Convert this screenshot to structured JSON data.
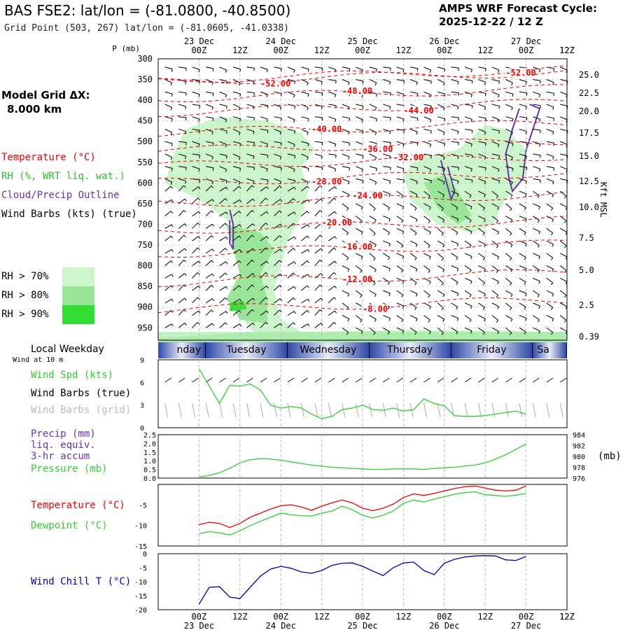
{
  "header": {
    "title": "BAS FSE2:  lat/lon = (-81.0800, -40.8500)",
    "grid_point": "Grid Point (503, 267) lat/lon = (-81.0605, -41.0338)",
    "forecast_title": "AMPS WRF Forecast Cycle:",
    "forecast_cycle": "2025-12-22 / 12  Z"
  },
  "model_grid": {
    "line1": "Model Grid ΔX:",
    "line2": "8.000 km"
  },
  "upper_legend": {
    "temperature": "Temperature (°C)",
    "rh": "RH (%, WRT liq. wat.)",
    "cloud": "Cloud/Precip Outline",
    "wind": "Wind Barbs (kts) (true)",
    "rh70": "RH > 70%",
    "rh80": "RH > 80%",
    "rh90": "RH > 90%"
  },
  "colors": {
    "temperature": "#ee0000",
    "rh70": "#ccf5cc",
    "rh80": "#99e699",
    "rh90": "#33dd33",
    "cloud": "#6633aa",
    "wind_speed": "#33cc33",
    "wind_grid": "#aaaaaa",
    "precip": "#6633aa",
    "pressure": "#33cc33",
    "dewpoint": "#33cc33",
    "wind_chill": "#0000aa",
    "weekday_band": "#6070b8"
  },
  "time_axis": {
    "top_dates": [
      "23 Dec",
      "24 Dec",
      "25 Dec",
      "26 Dec",
      "27 Dec"
    ],
    "bottom_dates": [
      "23 Dec",
      "24 Dec",
      "25 Dec",
      "26 Dec",
      "27 Dec"
    ],
    "hours": [
      "00Z",
      "12Z",
      "00Z",
      "12Z",
      "00Z",
      "12Z",
      "00Z",
      "12Z",
      "00Z",
      "12Z"
    ],
    "p_label": "P (mb)",
    "right_label": "Kft MSL"
  },
  "weekday": {
    "label": "Local Weekday",
    "days": [
      "nday",
      "Tuesday",
      "Wednesday",
      "Thursday",
      "Friday",
      "Sa"
    ]
  },
  "wind10": {
    "subtitle": "Wind at 10 m",
    "speed_label": "Wind Spd (kts)",
    "barbs_label": "Wind Barbs (true)",
    "grid_label": "Wind Barbs (grid)"
  },
  "precip_panel": {
    "precip_label": "Precip (mm)",
    "liq": "liq. equiv.",
    "accum": "3-hr accum",
    "pressure_label": "Pressure (mb)",
    "pressure_unit": "(mb)"
  },
  "temp_panel": {
    "temp_label": "Temperature (°C)",
    "dew_label": "Dewpoint (°C)"
  },
  "chill_panel": {
    "label": "Wind Chill T (°C)"
  },
  "chart_data": [
    {
      "type": "line",
      "name": "upper-air time-height",
      "y_axis": "pressure (mb)",
      "pressure_ticks": [
        300,
        350,
        400,
        450,
        500,
        550,
        600,
        650,
        700,
        750,
        800,
        850,
        900,
        950
      ],
      "height_ticks": [
        "25.0",
        "22.5",
        "20.0",
        "17.5",
        "15.0",
        "12.5",
        "10.0",
        "7.5",
        "5.0",
        "2.5",
        "0.39"
      ],
      "isotherms": [
        {
          "label": "-52.00",
          "p": 350,
          "t": 18
        },
        {
          "label": "-52.00",
          "p": 330,
          "t": 90
        },
        {
          "label": "-48.00",
          "p": 385,
          "t": 42
        },
        {
          "label": "-44.00",
          "p": 415,
          "t": 60
        },
        {
          "label": "-40.00",
          "p": 470,
          "t": 33
        },
        {
          "label": "-36.00",
          "p": 510,
          "t": 48
        },
        {
          "label": "-32.00",
          "p": 545,
          "t": 57
        },
        {
          "label": "-28.00",
          "p": 590,
          "t": 33
        },
        {
          "label": "-24.00",
          "p": 640,
          "t": 45
        },
        {
          "label": "-20.00",
          "p": 705,
          "t": 36
        },
        {
          "label": "-16.00",
          "p": 760,
          "t": 42
        },
        {
          "label": "-12.00",
          "p": 830,
          "t": 42
        },
        {
          "label": "-8.00",
          "p": 895,
          "t": 48
        }
      ]
    },
    {
      "type": "line",
      "name": "10 m wind speed",
      "ylim": [
        0,
        9
      ],
      "yticks": [
        "0",
        "3",
        "6",
        "9"
      ],
      "times": [
        0,
        3,
        6,
        9,
        12,
        15,
        18,
        21,
        24,
        27,
        30,
        33,
        36,
        39,
        42,
        45,
        48,
        51,
        54,
        57,
        60,
        63,
        66,
        69,
        72,
        75,
        78,
        81,
        84,
        87,
        90,
        93,
        96
      ],
      "values": [
        7.8,
        5.5,
        3.2,
        5.6,
        5.5,
        5.8,
        5.0,
        3.0,
        2.6,
        2.8,
        2.6,
        1.8,
        1.2,
        1.5,
        2.4,
        2.6,
        3.0,
        2.4,
        2.3,
        2.6,
        2.2,
        2.4,
        3.8,
        3.2,
        2.9,
        1.6,
        1.5,
        1.5,
        1.6,
        1.8,
        2.0,
        2.2,
        1.8
      ]
    },
    {
      "type": "line",
      "name": "precip and pressure",
      "precip_ticks": [
        "0.0",
        "0.5",
        "1.0",
        "1.5",
        "2.0",
        "2.5"
      ],
      "pressure_ticks": [
        "976",
        "978",
        "980",
        "982",
        "984"
      ],
      "pressure_times": [
        0,
        3,
        6,
        9,
        12,
        15,
        18,
        21,
        24,
        27,
        30,
        33,
        36,
        39,
        42,
        45,
        48,
        51,
        54,
        57,
        60,
        63,
        66,
        69,
        72,
        75,
        78,
        81,
        84,
        87,
        90,
        93,
        96
      ],
      "pressure": [
        976.2,
        976.5,
        977.0,
        977.8,
        978.8,
        979.4,
        979.6,
        979.5,
        979.3,
        979.0,
        978.7,
        978.4,
        978.2,
        978.0,
        977.9,
        977.8,
        977.7,
        977.6,
        977.6,
        977.7,
        977.7,
        977.7,
        977.6,
        977.8,
        977.9,
        978.0,
        978.2,
        978.4,
        978.8,
        979.5,
        980.3,
        981.3,
        982.3
      ]
    },
    {
      "type": "line",
      "name": "temperature and dewpoint",
      "ylim": [
        -15,
        0
      ],
      "yticks": [
        "-15",
        "-10",
        "-5"
      ],
      "times": [
        0,
        3,
        6,
        9,
        12,
        15,
        18,
        21,
        24,
        27,
        30,
        33,
        36,
        39,
        42,
        45,
        48,
        51,
        54,
        57,
        60,
        63,
        66,
        69,
        72,
        75,
        78,
        81,
        84,
        87,
        90,
        93,
        96
      ],
      "temperature": [
        -9.8,
        -9.2,
        -9.5,
        -10.5,
        -9.5,
        -8.0,
        -7.0,
        -6.0,
        -5.2,
        -5.0,
        -5.5,
        -6.3,
        -5.3,
        -4.5,
        -3.8,
        -4.5,
        -5.8,
        -6.4,
        -5.8,
        -4.8,
        -3.2,
        -2.3,
        -2.7,
        -2.2,
        -1.6,
        -1.0,
        -0.6,
        -0.4,
        -0.9,
        -1.4,
        -1.6,
        -1.4,
        -0.4
      ],
      "dewpoint": [
        -12.0,
        -11.5,
        -11.8,
        -12.3,
        -11.3,
        -10.0,
        -9.0,
        -8.0,
        -7.0,
        -7.4,
        -7.6,
        -7.7,
        -7.0,
        -6.5,
        -5.3,
        -6.2,
        -7.5,
        -8.2,
        -7.5,
        -6.5,
        -4.6,
        -3.8,
        -4.3,
        -3.6,
        -3.0,
        -2.4,
        -2.0,
        -1.8,
        -2.5,
        -2.7,
        -2.9,
        -2.6,
        -2.2
      ]
    },
    {
      "type": "line",
      "name": "wind chill",
      "ylim": [
        -20,
        0
      ],
      "yticks": [
        "-20",
        "-15",
        "-10",
        "-5",
        "0"
      ],
      "times": [
        0,
        3,
        6,
        9,
        12,
        15,
        18,
        21,
        24,
        27,
        30,
        33,
        36,
        39,
        42,
        45,
        48,
        51,
        54,
        57,
        60,
        63,
        66,
        69,
        72,
        75,
        78,
        81,
        84,
        87,
        90,
        93,
        96
      ],
      "values": [
        -18.0,
        -12.0,
        -11.8,
        -15.5,
        -16.0,
        -12.0,
        -8.0,
        -5.5,
        -4.5,
        -5.2,
        -6.5,
        -7.0,
        -6.0,
        -4.2,
        -3.4,
        -3.3,
        -4.5,
        -6.2,
        -7.8,
        -5.0,
        -3.3,
        -3.0,
        -6.0,
        -7.5,
        -3.4,
        -2.0,
        -1.2,
        -0.8,
        -0.7,
        -0.8,
        -2.2,
        -2.4,
        -1.0
      ]
    }
  ]
}
